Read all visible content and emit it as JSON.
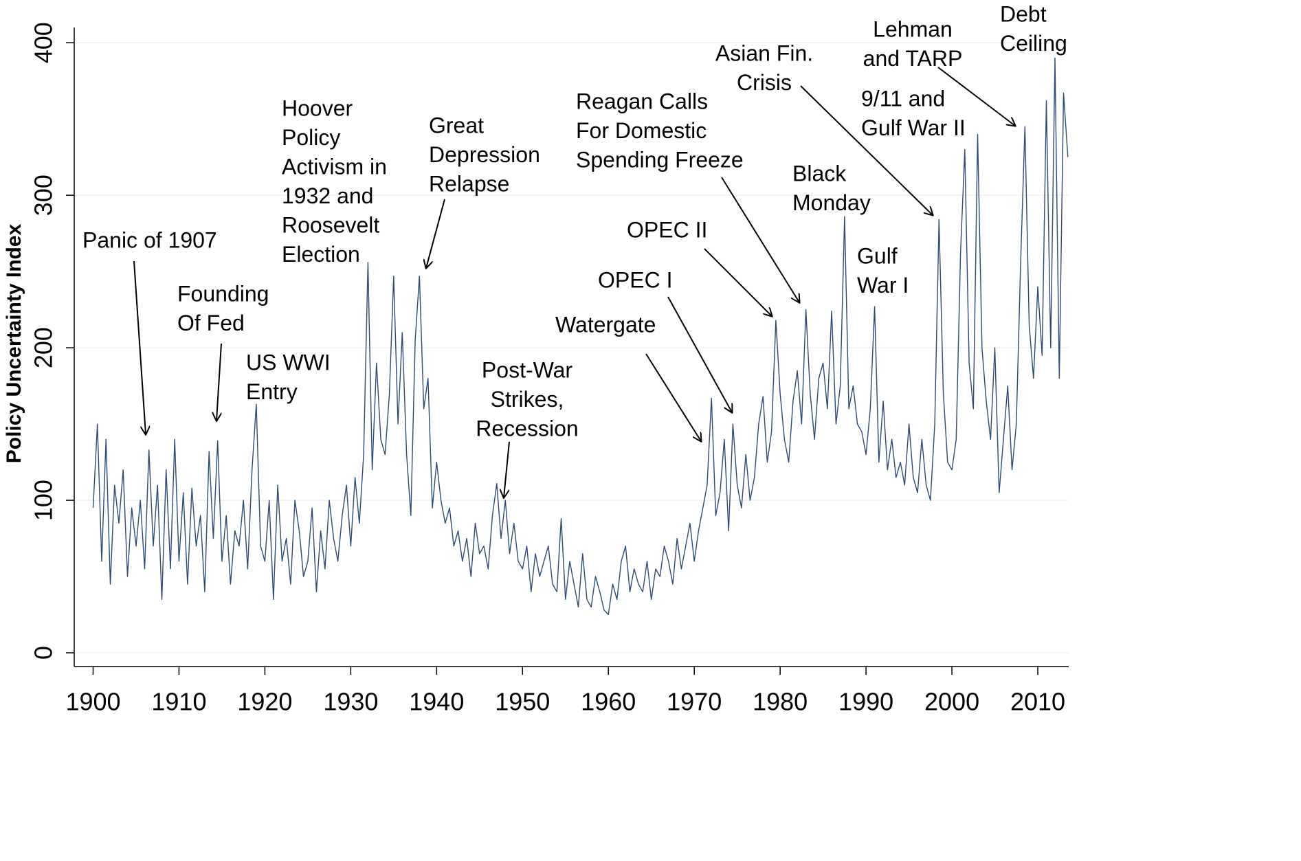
{
  "chart_data": {
    "type": "line",
    "ylabel": "Policy Uncertainty Index",
    "color": "#2b4a75",
    "grid": true,
    "xlim": [
      1897.8,
      2013.6
    ],
    "ylim": [
      -9,
      410
    ],
    "xticks": [
      1900,
      1910,
      1920,
      1930,
      1940,
      1950,
      1960,
      1970,
      1980,
      1990,
      2000,
      2010
    ],
    "yticks": [
      0,
      100,
      200,
      300,
      400
    ],
    "x": [
      1900,
      1900.5,
      1901,
      1901.5,
      1902,
      1902.5,
      1903,
      1903.5,
      1904,
      1904.5,
      1905,
      1905.5,
      1906,
      1906.5,
      1907,
      1907.5,
      1908,
      1908.5,
      1909,
      1909.5,
      1910,
      1910.5,
      1911,
      1911.5,
      1912,
      1912.5,
      1913,
      1913.5,
      1914,
      1914.5,
      1915,
      1915.5,
      1916,
      1916.5,
      1917,
      1917.5,
      1918,
      1918.5,
      1919,
      1919.5,
      1920,
      1920.5,
      1921,
      1921.5,
      1922,
      1922.5,
      1923,
      1923.5,
      1924,
      1924.5,
      1925,
      1925.5,
      1926,
      1926.5,
      1927,
      1927.5,
      1928,
      1928.5,
      1929,
      1929.5,
      1930,
      1930.5,
      1931,
      1931.5,
      1932,
      1932.5,
      1933,
      1933.5,
      1934,
      1934.5,
      1935,
      1935.5,
      1936,
      1936.5,
      1937,
      1937.5,
      1938,
      1938.5,
      1939,
      1939.5,
      1940,
      1940.5,
      1941,
      1941.5,
      1942,
      1942.5,
      1943,
      1943.5,
      1944,
      1944.5,
      1945,
      1945.5,
      1946,
      1946.5,
      1947,
      1947.5,
      1948,
      1948.5,
      1949,
      1949.5,
      1950,
      1950.5,
      1951,
      1951.5,
      1952,
      1952.5,
      1953,
      1953.5,
      1954,
      1954.5,
      1955,
      1955.5,
      1956,
      1956.5,
      1957,
      1957.5,
      1958,
      1958.5,
      1959,
      1959.5,
      1960,
      1960.5,
      1961,
      1961.5,
      1962,
      1962.5,
      1963,
      1963.5,
      1964,
      1964.5,
      1965,
      1965.5,
      1966,
      1966.5,
      1967,
      1967.5,
      1968,
      1968.5,
      1969,
      1969.5,
      1970,
      1970.5,
      1971,
      1971.5,
      1972,
      1972.5,
      1973,
      1973.5,
      1974,
      1974.5,
      1975,
      1975.5,
      1976,
      1976.5,
      1977,
      1977.5,
      1978,
      1978.5,
      1979,
      1979.5,
      1980,
      1980.5,
      1981,
      1981.5,
      1982,
      1982.5,
      1983,
      1983.5,
      1984,
      1984.5,
      1985,
      1985.5,
      1986,
      1986.5,
      1987,
      1987.5,
      1988,
      1988.5,
      1989,
      1989.5,
      1990,
      1990.5,
      1991,
      1991.5,
      1992,
      1992.5,
      1993,
      1993.5,
      1994,
      1994.5,
      1995,
      1995.5,
      1996,
      1996.5,
      1997,
      1997.5,
      1998,
      1998.5,
      1999,
      1999.5,
      2000,
      2000.5,
      2001,
      2001.5,
      2002,
      2002.5,
      2003,
      2003.5,
      2004,
      2004.5,
      2005,
      2005.5,
      2006,
      2006.5,
      2007,
      2007.5,
      2008,
      2008.5,
      2009,
      2009.5,
      2010,
      2010.5,
      2011,
      2011.5,
      2012,
      2012.5,
      2013,
      2013.5
    ],
    "values": [
      95,
      150,
      60,
      140,
      45,
      110,
      85,
      120,
      50,
      95,
      70,
      100,
      55,
      133,
      70,
      110,
      35,
      120,
      55,
      140,
      60,
      105,
      45,
      108,
      70,
      90,
      40,
      132,
      75,
      139,
      60,
      90,
      45,
      80,
      70,
      100,
      55,
      120,
      163,
      70,
      60,
      100,
      35,
      110,
      60,
      75,
      45,
      100,
      80,
      50,
      60,
      95,
      40,
      80,
      55,
      100,
      75,
      60,
      90,
      110,
      70,
      115,
      85,
      130,
      256,
      120,
      190,
      140,
      130,
      170,
      247,
      150,
      210,
      130,
      90,
      205,
      247,
      160,
      180,
      95,
      125,
      100,
      85,
      95,
      70,
      80,
      60,
      75,
      50,
      85,
      65,
      70,
      55,
      90,
      111,
      75,
      100,
      65,
      85,
      60,
      55,
      70,
      40,
      65,
      50,
      60,
      70,
      45,
      40,
      88,
      35,
      60,
      45,
      30,
      65,
      35,
      30,
      50,
      40,
      28,
      25,
      45,
      35,
      60,
      70,
      40,
      55,
      45,
      40,
      60,
      35,
      55,
      50,
      70,
      60,
      45,
      75,
      55,
      70,
      85,
      60,
      80,
      95,
      110,
      167,
      90,
      105,
      140,
      80,
      150,
      110,
      95,
      130,
      100,
      115,
      150,
      168,
      125,
      145,
      218,
      170,
      140,
      125,
      165,
      185,
      150,
      225,
      170,
      140,
      180,
      190,
      160,
      224,
      150,
      175,
      286,
      160,
      175,
      150,
      145,
      130,
      160,
      227,
      125,
      165,
      120,
      140,
      115,
      125,
      110,
      150,
      115,
      105,
      140,
      110,
      100,
      150,
      284,
      170,
      125,
      120,
      140,
      262,
      330,
      190,
      160,
      340,
      200,
      165,
      140,
      200,
      105,
      140,
      175,
      120,
      150,
      255,
      345,
      215,
      180,
      240,
      195,
      362,
      200,
      390,
      180,
      367,
      325
    ],
    "annotations": [
      [
        "Panic of 1907"
      ],
      [
        "Founding",
        "Of Fed"
      ],
      [
        "US WWI",
        "Entry"
      ],
      [
        "Hoover",
        "Policy",
        "Activism in",
        "1932 and",
        "Roosevelt",
        "Election"
      ],
      [
        "Great",
        "Depression",
        "Relapse"
      ],
      [
        "Post-War",
        "Strikes,",
        "Recession"
      ],
      [
        "Watergate"
      ],
      [
        "OPEC I"
      ],
      [
        "OPEC II"
      ],
      [
        "Reagan Calls",
        "For Domestic",
        "Spending Freeze"
      ],
      [
        "Asian Fin.",
        "Crisis"
      ],
      [
        "Black",
        "Monday"
      ],
      [
        "Gulf",
        "War I"
      ],
      [
        "9/11 and",
        "Gulf War II"
      ],
      [
        "Lehman",
        "and TARP"
      ],
      [
        "Debt",
        "Ceiling"
      ]
    ]
  }
}
